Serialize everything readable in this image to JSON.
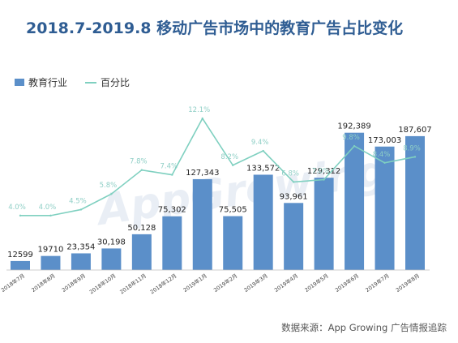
{
  "title": "2018.7-2019.8 移动广告市场中的教育广告占比变化",
  "legend": {
    "bar_label": "教育行业",
    "line_label": "百分比"
  },
  "source": "数据来源：App Growing 广告情报追踪",
  "watermark": "AppGrowing",
  "colors": {
    "bar": "#5b8fc9",
    "line": "#7fd0c0",
    "title": "#2f5d93"
  },
  "chart_data": {
    "type": "bar",
    "categories": [
      "2018年7月",
      "2018年8月",
      "2018年9月",
      "2018年10月",
      "2018年11月",
      "2018年12月",
      "2019年1月",
      "2019年2月",
      "2019年3月",
      "2019年4月",
      "2019年5月",
      "2019年6月",
      "2019年7月",
      "2019年8月"
    ],
    "series": [
      {
        "name": "教育行业",
        "type": "bar",
        "values": [
          12599,
          19710,
          23354,
          30198,
          50128,
          75302,
          127343,
          75505,
          133572,
          93961,
          129312,
          192389,
          173003,
          187607
        ],
        "labels": [
          "12599",
          "19710",
          "23,354",
          "30,198",
          "50,128",
          "75,302",
          "127,343",
          "75,505",
          "133,572",
          "93,961",
          "129,312",
          "192,389",
          "173,003",
          "187,607"
        ]
      },
      {
        "name": "百分比",
        "type": "line",
        "values": [
          4.0,
          4.0,
          4.5,
          5.8,
          7.8,
          7.4,
          12.1,
          8.2,
          9.4,
          6.8,
          7.0,
          9.8,
          8.4,
          8.9
        ],
        "labels": [
          "4.0%",
          "4.0%",
          "4.5%",
          "5.8%",
          "7.8%",
          "7.4%",
          "12.1%",
          "8.2%",
          "9.4%",
          "6.8%",
          "7.0%",
          "9.8%",
          "8.4%",
          "8.9%"
        ]
      }
    ],
    "ylim": [
      0,
      200000
    ],
    "ylim_right": [
      0,
      14
    ],
    "grid": false,
    "legend_position": "top-left"
  }
}
